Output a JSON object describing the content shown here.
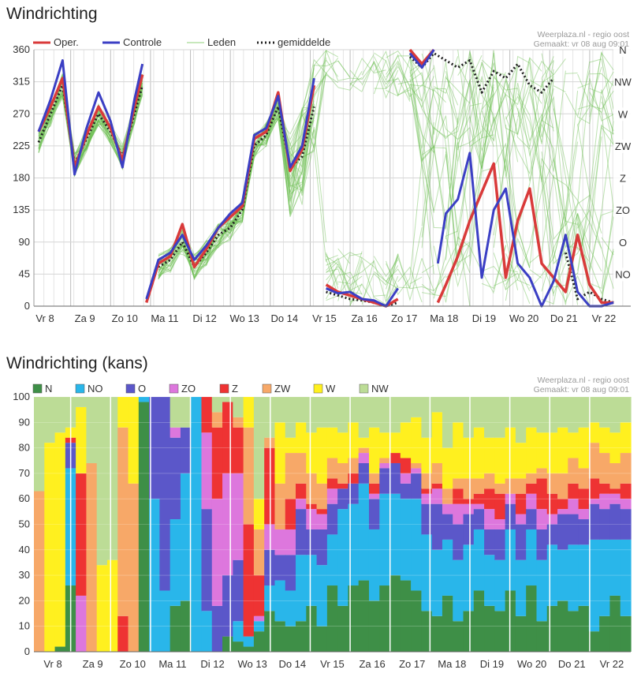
{
  "charts": [
    {
      "title": "Windrichting",
      "credit_line1": "Weerplaza.nl - regio oost",
      "credit_line2": "Gemaakt: vr 08 aug 09:01",
      "legend": [
        {
          "label": "Oper.",
          "color": "#d93a3a",
          "style": "line"
        },
        {
          "label": "Controle",
          "color": "#3b3fc4",
          "style": "line"
        },
        {
          "label": "Leden",
          "color": "#8fd07a",
          "style": "thin"
        },
        {
          "label": "gemiddelde",
          "color": "#222222",
          "style": "dotted"
        }
      ],
      "direction_labels": [
        "N",
        "NW",
        "W",
        "ZW",
        "Z",
        "ZO",
        "O",
        "NO"
      ]
    },
    {
      "title": "Windrichting (kans)",
      "credit_line1": "Weerplaza.nl - regio oost",
      "credit_line2": "Gemaakt: vr 08 aug 09:01",
      "legend": [
        {
          "label": "N",
          "color": "#3e8f47"
        },
        {
          "label": "NO",
          "color": "#29b6ea"
        },
        {
          "label": "O",
          "color": "#5b57c9"
        },
        {
          "label": "ZO",
          "color": "#dd77dd"
        },
        {
          "label": "Z",
          "color": "#ee3333"
        },
        {
          "label": "ZW",
          "color": "#f7a868"
        },
        {
          "label": "W",
          "color": "#fff01f"
        },
        {
          "label": "NW",
          "color": "#bcdc96"
        }
      ]
    }
  ],
  "chart_data": [
    {
      "type": "line",
      "title": "Windrichting",
      "x_categories": [
        "Vr 8",
        "Za 9",
        "Zo 10",
        "Ma 11",
        "Di 12",
        "Wo 13",
        "Do 14",
        "Vr 15",
        "Za 16",
        "Zo 17",
        "Ma 18",
        "Di 19",
        "Wo 20",
        "Do 21",
        "Vr 22"
      ],
      "ylim": [
        0,
        360
      ],
      "yticks": [
        0,
        45,
        90,
        135,
        180,
        225,
        270,
        315,
        360
      ],
      "grid": true,
      "legend_position": "top",
      "series": [
        {
          "name": "Oper.",
          "x": [
            0,
            0.3,
            0.6,
            0.9,
            1.2,
            1.5,
            1.8,
            2.1,
            2.4,
            2.6,
            2.7,
            3.0,
            3.3,
            3.6,
            3.9,
            4.2,
            4.5,
            4.8,
            5.1,
            5.4,
            5.7,
            6.0,
            6.3,
            6.6,
            6.9,
            7.2,
            7.5,
            7.8,
            8.1,
            8.4,
            8.7,
            9.0,
            9.3,
            9.6,
            9.9,
            10.0,
            10.2,
            10.5,
            10.8,
            11.1,
            11.4,
            11.7,
            12.0,
            12.3,
            12.6,
            12.9,
            13.2,
            13.5,
            13.8,
            14.1,
            14.4
          ],
          "y": [
            245,
            280,
            320,
            195,
            240,
            280,
            250,
            205,
            280,
            325,
            5,
            60,
            70,
            115,
            55,
            80,
            110,
            125,
            140,
            235,
            245,
            300,
            190,
            220,
            310,
            30,
            20,
            15,
            10,
            5,
            0,
            10,
            360,
            340,
            360,
            5,
            30,
            70,
            120,
            160,
            200,
            40,
            120,
            165,
            60,
            40,
            20,
            100,
            30,
            5,
            5
          ]
        },
        {
          "name": "Controle",
          "x": [
            0,
            0.3,
            0.6,
            0.9,
            1.2,
            1.5,
            1.8,
            2.1,
            2.4,
            2.6,
            2.7,
            3.0,
            3.3,
            3.6,
            3.9,
            4.2,
            4.5,
            4.8,
            5.1,
            5.4,
            5.7,
            6.0,
            6.3,
            6.6,
            6.9,
            7.2,
            7.5,
            7.8,
            8.1,
            8.4,
            8.7,
            9.0,
            9.3,
            9.6,
            9.9,
            10.0,
            10.2,
            10.5,
            10.8,
            11.1,
            11.4,
            11.7,
            12.0,
            12.3,
            12.6,
            12.9,
            13.2,
            13.5,
            13.8,
            14.1,
            14.4
          ],
          "y": [
            245,
            290,
            345,
            185,
            250,
            300,
            260,
            195,
            290,
            340,
            10,
            65,
            75,
            100,
            65,
            85,
            110,
            130,
            145,
            240,
            250,
            295,
            195,
            225,
            320,
            25,
            18,
            20,
            10,
            8,
            0,
            25,
            355,
            335,
            360,
            60,
            130,
            150,
            215,
            40,
            135,
            165,
            60,
            40,
            0,
            35,
            100,
            20,
            0,
            0,
            5
          ]
        },
        {
          "name": "gemiddelde",
          "x": [
            0,
            0.3,
            0.6,
            0.9,
            1.2,
            1.5,
            1.8,
            2.1,
            2.4,
            2.6,
            3.0,
            3.3,
            3.6,
            3.9,
            4.2,
            4.5,
            4.8,
            5.1,
            5.4,
            5.7,
            6.0,
            6.3,
            6.6,
            6.9,
            7.2,
            7.5,
            7.8,
            8.1,
            8.4,
            8.7,
            9.0,
            9.3,
            9.6,
            9.9,
            10.2,
            10.5,
            10.8,
            11.1,
            11.4,
            11.7,
            12.0,
            12.3,
            12.6,
            12.9,
            13.2,
            13.5,
            13.8,
            14.1,
            14.4
          ],
          "y": [
            230,
            270,
            310,
            200,
            235,
            270,
            245,
            210,
            270,
            310,
            55,
            65,
            90,
            55,
            75,
            100,
            110,
            135,
            225,
            240,
            280,
            195,
            210,
            280,
            20,
            15,
            10,
            8,
            5,
            0,
            5,
            350,
            335,
            355,
            345,
            335,
            345,
            300,
            330,
            320,
            340,
            310,
            300,
            320,
            75,
            10,
            20,
            10,
            5
          ]
        }
      ]
    },
    {
      "type": "bar",
      "stacked": true,
      "title": "Windrichting (kans)",
      "x_categories": [
        "Vr 8",
        "Za 9",
        "Zo 10",
        "Ma 11",
        "Di 12",
        "Wo 13",
        "Do 14",
        "Vr 15",
        "Za 16",
        "Zo 17",
        "Ma 18",
        "Di 19",
        "Wo 20",
        "Do 21",
        "Vr 22"
      ],
      "ylim": [
        0,
        100
      ],
      "yticks": [
        0,
        10,
        20,
        30,
        40,
        50,
        60,
        70,
        80,
        90,
        100
      ],
      "grid": true,
      "legend_position": "top",
      "series_order": [
        "N",
        "NO",
        "O",
        "ZO",
        "Z",
        "ZW",
        "W",
        "NW"
      ],
      "bars": [
        [
          0,
          0,
          0,
          0,
          0,
          63,
          0,
          37
        ],
        [
          0,
          0,
          0,
          0,
          0,
          0,
          82,
          18
        ],
        [
          2,
          0,
          0,
          0,
          0,
          0,
          84,
          14
        ],
        [
          26,
          46,
          10,
          0,
          2,
          0,
          4,
          12
        ],
        [
          0,
          0,
          0,
          22,
          48,
          0,
          26,
          4
        ],
        [
          0,
          0,
          0,
          0,
          0,
          74,
          0,
          26
        ],
        [
          0,
          0,
          0,
          0,
          0,
          0,
          34,
          66
        ],
        [
          0,
          0,
          0,
          0,
          0,
          0,
          36,
          64
        ],
        [
          0,
          0,
          0,
          0,
          14,
          74,
          12,
          0
        ],
        [
          0,
          0,
          0,
          0,
          0,
          66,
          34,
          0
        ],
        [
          98,
          2,
          0,
          0,
          0,
          0,
          0,
          0
        ],
        [
          0,
          60,
          40,
          0,
          0,
          0,
          0,
          0
        ],
        [
          0,
          24,
          76,
          0,
          0,
          0,
          0,
          0
        ],
        [
          18,
          34,
          32,
          4,
          0,
          0,
          0,
          12
        ],
        [
          20,
          50,
          18,
          0,
          0,
          0,
          0,
          12
        ],
        [
          0,
          100,
          0,
          0,
          0,
          0,
          0,
          0
        ],
        [
          0,
          16,
          40,
          30,
          14,
          0,
          0,
          0
        ],
        [
          0,
          0,
          18,
          42,
          28,
          6,
          0,
          6
        ],
        [
          6,
          0,
          24,
          40,
          28,
          0,
          0,
          2
        ],
        [
          4,
          8,
          24,
          34,
          18,
          4,
          0,
          8
        ],
        [
          2,
          4,
          0,
          0,
          44,
          38,
          12,
          0
        ],
        [
          8,
          4,
          0,
          2,
          16,
          18,
          12,
          40
        ],
        [
          16,
          10,
          14,
          10,
          30,
          4,
          0,
          16
        ],
        [
          12,
          16,
          10,
          10,
          0,
          18,
          24,
          10
        ],
        [
          10,
          14,
          14,
          10,
          12,
          18,
          6,
          16
        ],
        [
          12,
          26,
          18,
          4,
          6,
          12,
          12,
          10
        ],
        [
          18,
          20,
          10,
          8,
          2,
          12,
          16,
          14
        ],
        [
          10,
          24,
          14,
          6,
          2,
          10,
          22,
          12
        ],
        [
          26,
          20,
          12,
          6,
          4,
          8,
          12,
          12
        ],
        [
          18,
          38,
          8,
          0,
          2,
          8,
          12,
          14
        ],
        [
          26,
          32,
          8,
          0,
          4,
          6,
          14,
          10
        ],
        [
          28,
          38,
          8,
          4,
          0,
          2,
          4,
          16
        ],
        [
          20,
          28,
          12,
          2,
          4,
          4,
          18,
          12
        ],
        [
          26,
          36,
          10,
          2,
          0,
          2,
          10,
          14
        ],
        [
          30,
          32,
          12,
          0,
          4,
          0,
          8,
          14
        ],
        [
          28,
          32,
          6,
          4,
          6,
          0,
          14,
          10
        ],
        [
          24,
          36,
          10,
          2,
          0,
          2,
          18,
          8
        ],
        [
          16,
          30,
          12,
          4,
          2,
          6,
          14,
          16
        ],
        [
          14,
          26,
          18,
          6,
          2,
          8,
          20,
          6
        ],
        [
          22,
          22,
          10,
          4,
          0,
          6,
          16,
          20
        ],
        [
          12,
          24,
          14,
          8,
          6,
          4,
          22,
          10
        ],
        [
          16,
          26,
          12,
          4,
          2,
          8,
          16,
          16
        ],
        [
          24,
          24,
          8,
          2,
          4,
          6,
          20,
          12
        ],
        [
          18,
          20,
          10,
          8,
          8,
          6,
          14,
          16
        ],
        [
          16,
          20,
          12,
          4,
          10,
          4,
          18,
          16
        ],
        [
          24,
          24,
          10,
          4,
          0,
          6,
          20,
          12
        ],
        [
          14,
          22,
          14,
          4,
          8,
          6,
          14,
          18
        ],
        [
          26,
          22,
          8,
          6,
          4,
          4,
          18,
          12
        ],
        [
          12,
          24,
          12,
          8,
          12,
          4,
          14,
          14
        ],
        [
          18,
          24,
          8,
          4,
          8,
          8,
          16,
          14
        ],
        [
          20,
          20,
          14,
          2,
          4,
          10,
          18,
          12
        ],
        [
          16,
          26,
          12,
          6,
          6,
          10,
          10,
          14
        ],
        [
          18,
          24,
          10,
          4,
          8,
          8,
          16,
          12
        ],
        [
          8,
          36,
          14,
          2,
          8,
          14,
          8,
          10
        ],
        [
          14,
          30,
          12,
          6,
          4,
          12,
          10,
          12
        ],
        [
          22,
          22,
          14,
          4,
          2,
          10,
          12,
          14
        ],
        [
          14,
          30,
          12,
          4,
          6,
          12,
          12,
          10
        ]
      ]
    }
  ]
}
